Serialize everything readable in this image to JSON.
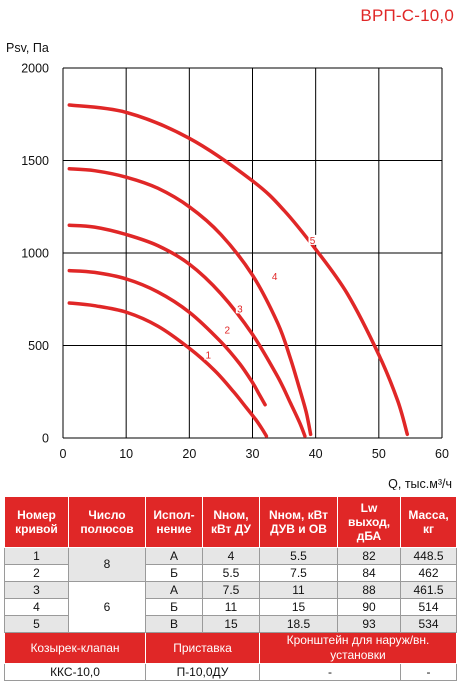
{
  "title": "ВРП-С-10,0",
  "chart_data": {
    "type": "line",
    "ylabel": "Psv, Па",
    "xlabel": "Q, тыс.м³/ч",
    "xlim": [
      0,
      60
    ],
    "ylim": [
      0,
      2000
    ],
    "x_ticks": [
      "0",
      "10",
      "20",
      "30",
      "40",
      "50",
      "60"
    ],
    "y_ticks": [
      "0",
      "500",
      "1000",
      "1500",
      "2000"
    ],
    "grid": true,
    "series": [
      {
        "name": "1",
        "label_at": [
          23,
          440
        ],
        "x": [
          1,
          5,
          10,
          15,
          20,
          24,
          27,
          29,
          30.5,
          31.5,
          32.2
        ],
        "y": [
          730,
          715,
          680,
          605,
          485,
          365,
          250,
          165,
          100,
          50,
          10
        ]
      },
      {
        "name": "2",
        "label_at": [
          26,
          575
        ],
        "x": [
          1,
          5,
          10,
          15,
          20,
          25,
          28,
          30,
          31,
          32
        ],
        "y": [
          905,
          895,
          860,
          790,
          680,
          520,
          400,
          300,
          240,
          180
        ]
      },
      {
        "name": "3",
        "label_at": [
          28,
          690
        ],
        "x": [
          1,
          5,
          10,
          15,
          20,
          25,
          30,
          34,
          36,
          37.5,
          38.3
        ],
        "y": [
          1150,
          1140,
          1100,
          1040,
          940,
          780,
          560,
          330,
          190,
          80,
          10
        ]
      },
      {
        "name": "4",
        "label_at": [
          33.5,
          865
        ],
        "x": [
          1,
          5,
          10,
          15,
          20,
          25,
          30,
          34,
          36,
          37.5,
          38.5,
          39.2
        ],
        "y": [
          1455,
          1445,
          1410,
          1350,
          1250,
          1100,
          880,
          620,
          430,
          260,
          140,
          20
        ]
      },
      {
        "name": "5",
        "label_at": [
          39.5,
          1060
        ],
        "x": [
          1,
          10,
          20,
          30,
          35,
          40,
          45,
          50,
          53,
          54.5
        ],
        "y": [
          1800,
          1760,
          1620,
          1390,
          1230,
          1020,
          780,
          450,
          200,
          20
        ]
      }
    ],
    "line_color": "#e02727"
  },
  "table": {
    "headers": [
      "Номер кривой",
      "Число полюсов",
      "Испол-нение",
      "Nном, кВт ДУ",
      "Nном, кВт ДУВ и ОВ",
      "Lw выход, дБА",
      "Масса, кг"
    ],
    "rows": [
      {
        "curve": "1",
        "version": "А",
        "n_du": "4",
        "n_duv": "5.5",
        "lw": "82",
        "mass": "448.5"
      },
      {
        "curve": "2",
        "version": "Б",
        "n_du": "5.5",
        "n_duv": "7.5",
        "lw": "84",
        "mass": "462"
      },
      {
        "curve": "3",
        "version": "А",
        "n_du": "7.5",
        "n_duv": "11",
        "lw": "88",
        "mass": "461.5"
      },
      {
        "curve": "4",
        "version": "Б",
        "n_du": "11",
        "n_duv": "15",
        "lw": "90",
        "mass": "514"
      },
      {
        "curve": "5",
        "version": "В",
        "n_du": "15",
        "n_duv": "18.5",
        "lw": "93",
        "mass": "534"
      }
    ],
    "poles": [
      "8",
      "6"
    ],
    "accessories": {
      "headers": [
        "Козырек-клапан",
        "Приставка",
        "Кронштейн для наруж/вн. установки"
      ],
      "values": [
        "ККС-10,0",
        "П-10,0ДУ",
        "-",
        "-"
      ]
    }
  }
}
